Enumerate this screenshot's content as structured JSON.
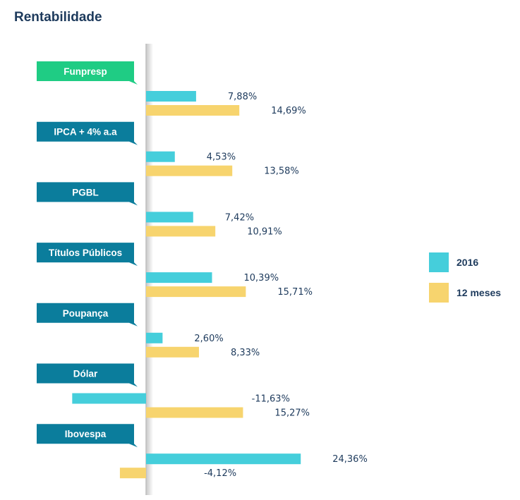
{
  "title": "Rentabilidade",
  "colors": {
    "series_2016": "#45cedb",
    "series_12m": "#f7d46e",
    "label_highlight": "#1fcc84",
    "label_default": "#0b7d9c",
    "text": "#1d3a5c"
  },
  "chart_data": {
    "type": "bar",
    "orientation": "horizontal",
    "title": "Rentabilidade",
    "categories": [
      "Funpresp",
      "IPCA + 4% a.a",
      "PGBL",
      "Títulos Públicos",
      "Poupança",
      "Dólar",
      "Ibovespa"
    ],
    "highlight_category": "Funpresp",
    "series": [
      {
        "name": "2016",
        "values": [
          7.88,
          4.53,
          7.42,
          10.39,
          2.6,
          -11.63,
          24.36
        ],
        "labels": [
          "7,88%",
          "4,53%",
          "7,42%",
          "10,39%",
          "2,60%",
          "-11,63%",
          "24,36%"
        ]
      },
      {
        "name": "12 meses",
        "values": [
          14.69,
          13.58,
          10.91,
          15.71,
          8.33,
          15.27,
          -4.12
        ],
        "labels": [
          "14,69%",
          "13,58%",
          "10,91%",
          "15,71%",
          "8,33%",
          "15,27%",
          "-4,12%"
        ]
      }
    ],
    "legend": {
      "position": "right",
      "entries": [
        "2016",
        "12 meses"
      ]
    },
    "grid": false
  }
}
